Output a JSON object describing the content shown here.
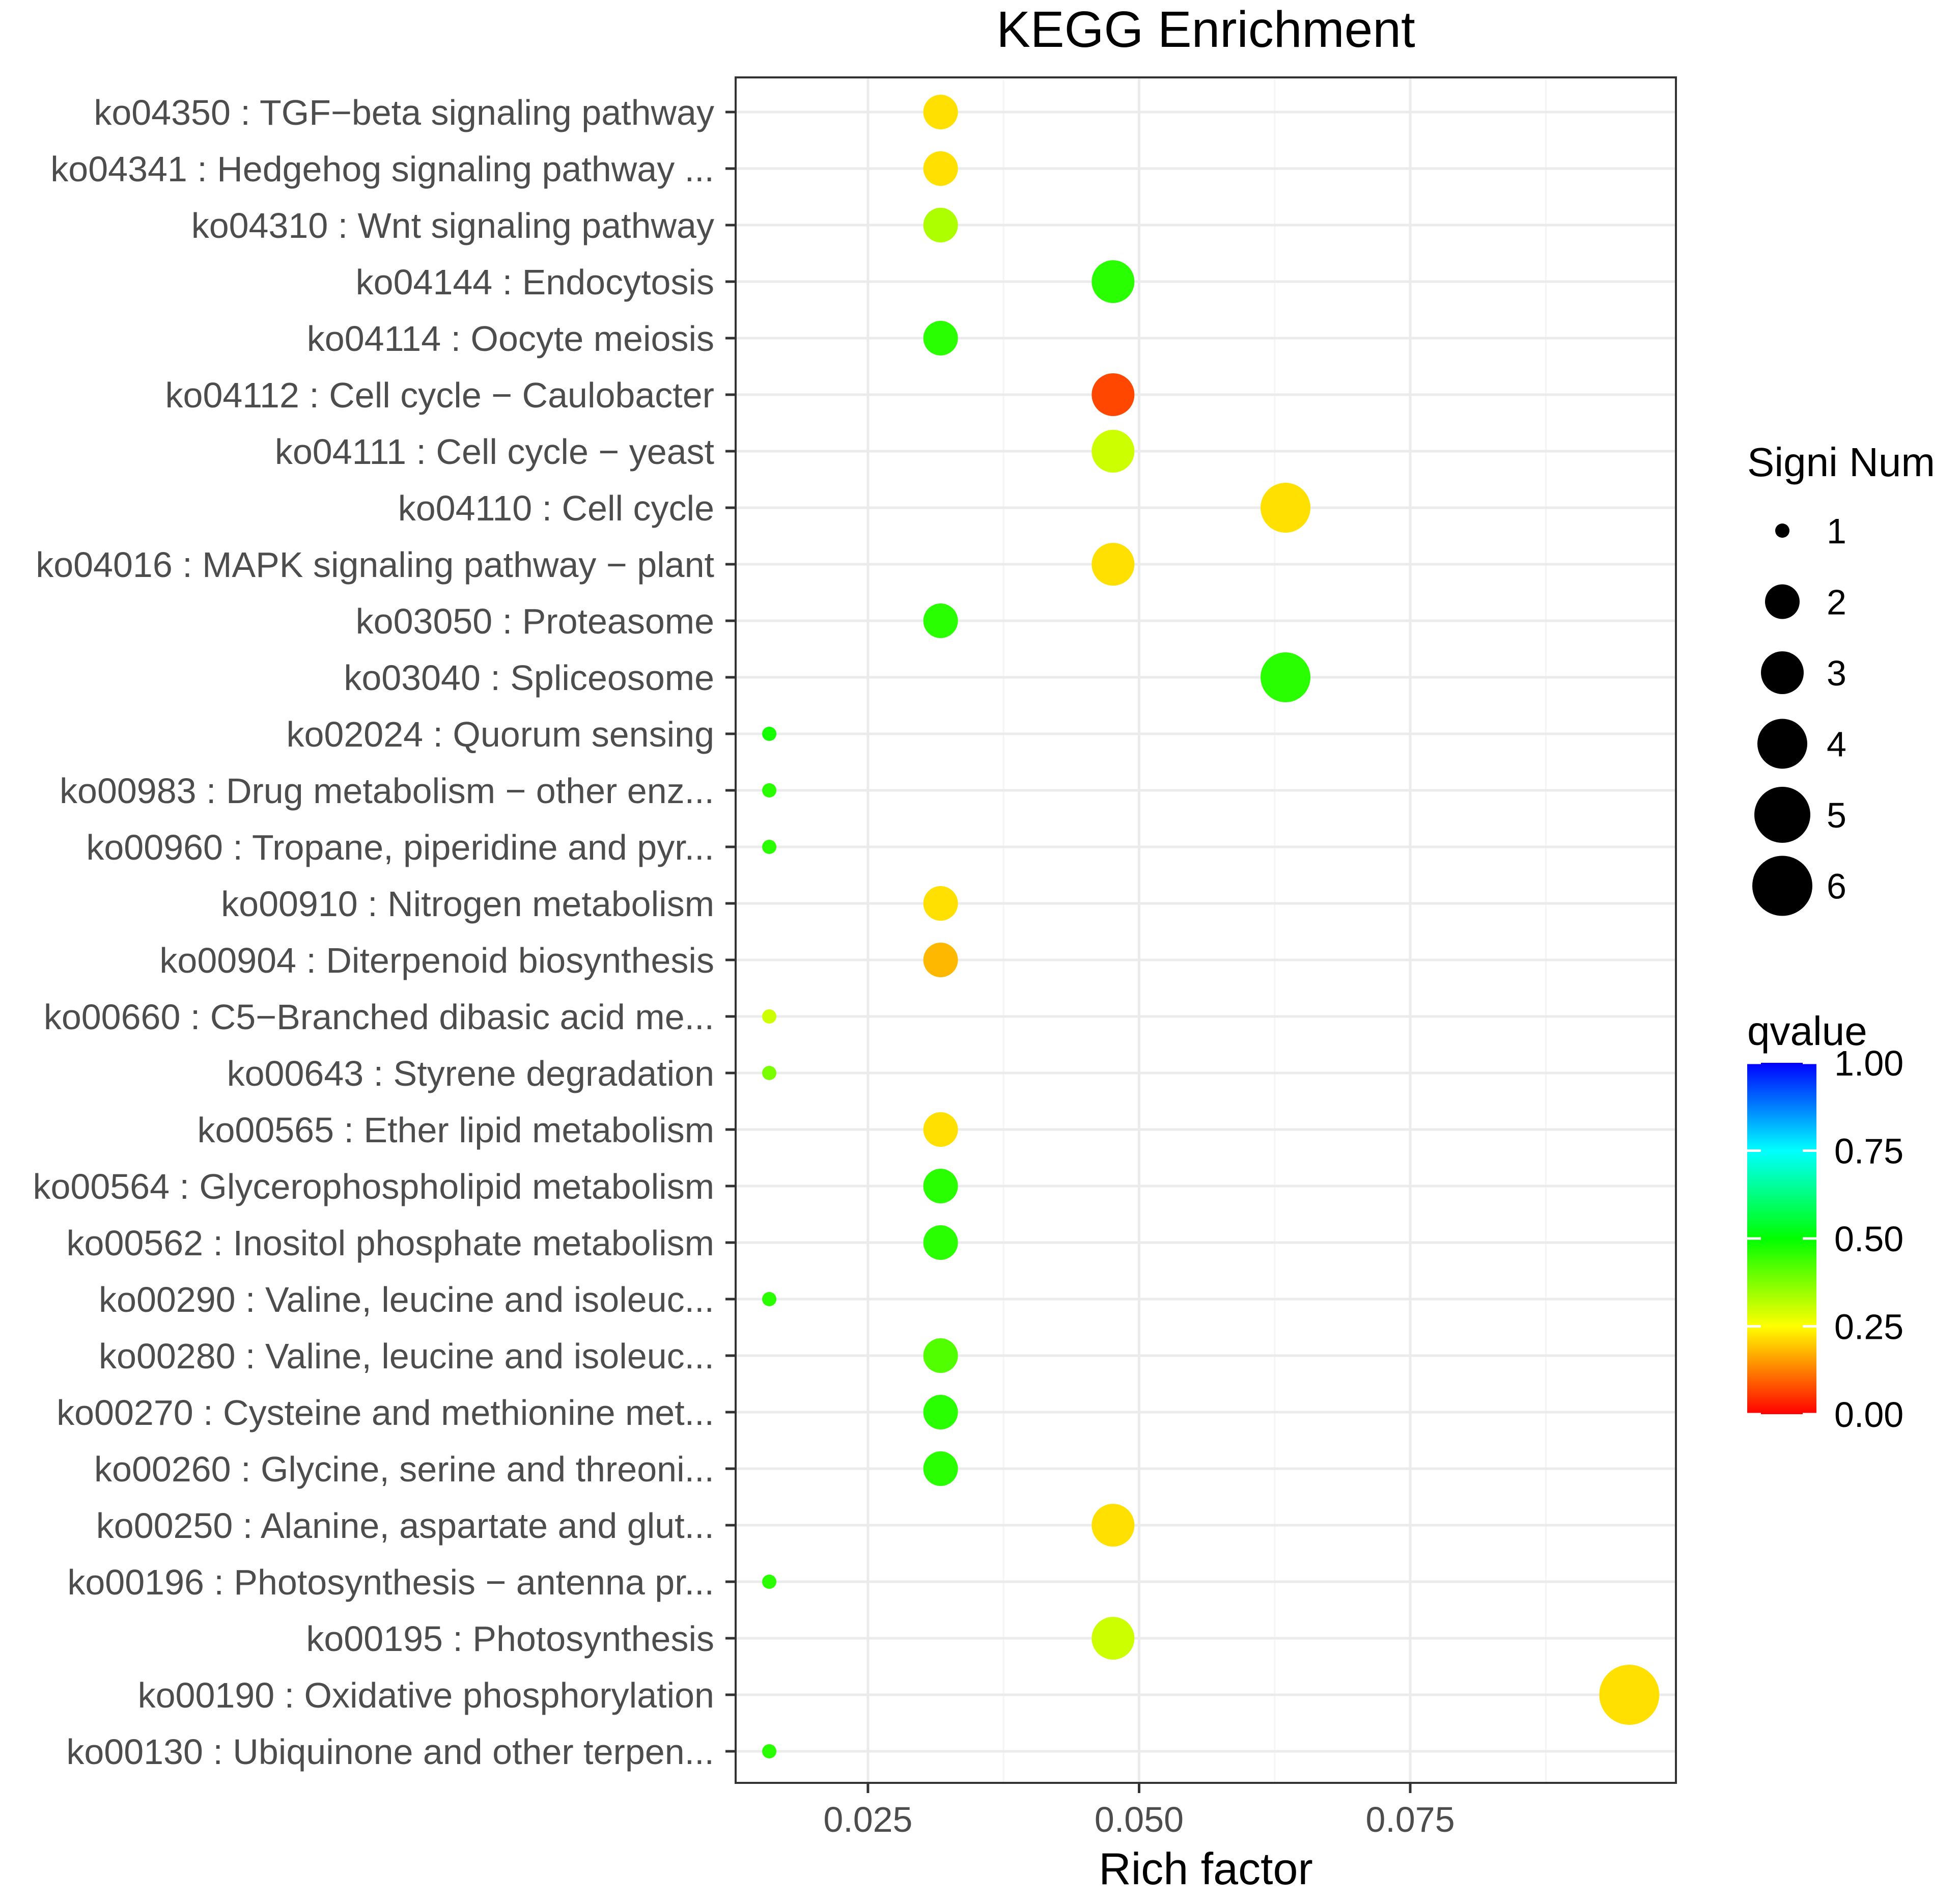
{
  "chart_data": {
    "type": "scatter",
    "title": "KEGG Enrichment",
    "xlabel": "Rich factor",
    "ylabel": "",
    "xlim": [
      0.0128,
      0.0995
    ],
    "x_ticks": [
      0.025,
      0.05,
      0.075
    ],
    "x_tick_labels": [
      "0.025",
      "0.050",
      "0.075"
    ],
    "grid": true,
    "points": [
      {
        "label": "ko04350 : TGF−beta signaling pathway",
        "x": 0.0317,
        "signi_num": 2,
        "qvalue": 0.22
      },
      {
        "label": "ko04341 : Hedgehog signaling pathway ...",
        "x": 0.0317,
        "signi_num": 2,
        "qvalue": 0.22
      },
      {
        "label": "ko04310 : Wnt signaling pathway",
        "x": 0.0317,
        "signi_num": 2,
        "qvalue": 0.33
      },
      {
        "label": "ko04144 : Endocytosis",
        "x": 0.0476,
        "signi_num": 3,
        "qvalue": 0.46
      },
      {
        "label": "ko04114 : Oocyte meiosis",
        "x": 0.0317,
        "signi_num": 2,
        "qvalue": 0.46
      },
      {
        "label": "ko04112 : Cell cycle − Caulobacter",
        "x": 0.0476,
        "signi_num": 3,
        "qvalue": 0.07
      },
      {
        "label": "ko04111 : Cell cycle − yeast",
        "x": 0.0476,
        "signi_num": 3,
        "qvalue": 0.3
      },
      {
        "label": "ko04110 : Cell cycle",
        "x": 0.0635,
        "signi_num": 4,
        "qvalue": 0.22
      },
      {
        "label": "ko04016 : MAPK signaling pathway − plant",
        "x": 0.0476,
        "signi_num": 3,
        "qvalue": 0.22
      },
      {
        "label": "ko03050 : Proteasome",
        "x": 0.0317,
        "signi_num": 2,
        "qvalue": 0.46
      },
      {
        "label": "ko03040 : Spliceosome",
        "x": 0.0635,
        "signi_num": 4,
        "qvalue": 0.46
      },
      {
        "label": "ko02024 : Quorum sensing",
        "x": 0.0159,
        "signi_num": 1,
        "qvalue": 0.48
      },
      {
        "label": "ko00983 : Drug metabolism − other enz...",
        "x": 0.0159,
        "signi_num": 1,
        "qvalue": 0.46
      },
      {
        "label": "ko00960 : Tropane, piperidine and pyr...",
        "x": 0.0159,
        "signi_num": 1,
        "qvalue": 0.46
      },
      {
        "label": "ko00910 : Nitrogen metabolism",
        "x": 0.0317,
        "signi_num": 2,
        "qvalue": 0.22
      },
      {
        "label": "ko00904 : Diterpenoid biosynthesis",
        "x": 0.0317,
        "signi_num": 2,
        "qvalue": 0.18
      },
      {
        "label": "ko00660 : C5−Branched dibasic acid me...",
        "x": 0.0159,
        "signi_num": 1,
        "qvalue": 0.3
      },
      {
        "label": "ko00643 : Styrene degradation",
        "x": 0.0159,
        "signi_num": 1,
        "qvalue": 0.38
      },
      {
        "label": "ko00565 : Ether lipid metabolism",
        "x": 0.0317,
        "signi_num": 2,
        "qvalue": 0.22
      },
      {
        "label": "ko00564 : Glycerophospholipid metabolism",
        "x": 0.0317,
        "signi_num": 2,
        "qvalue": 0.46
      },
      {
        "label": "ko00562 : Inositol phosphate metabolism",
        "x": 0.0317,
        "signi_num": 2,
        "qvalue": 0.46
      },
      {
        "label": "ko00290 : Valine, leucine and isoleuc...",
        "x": 0.0159,
        "signi_num": 1,
        "qvalue": 0.46
      },
      {
        "label": "ko00280 : Valine, leucine and isoleuc...",
        "x": 0.0317,
        "signi_num": 2,
        "qvalue": 0.42
      },
      {
        "label": "ko00270 : Cysteine and methionine met...",
        "x": 0.0317,
        "signi_num": 2,
        "qvalue": 0.46
      },
      {
        "label": "ko00260 : Glycine, serine and threoni...",
        "x": 0.0317,
        "signi_num": 2,
        "qvalue": 0.46
      },
      {
        "label": "ko00250 : Alanine, aspartate and glut...",
        "x": 0.0476,
        "signi_num": 3,
        "qvalue": 0.22
      },
      {
        "label": "ko00196 : Photosynthesis − antenna pr...",
        "x": 0.0159,
        "signi_num": 1,
        "qvalue": 0.46
      },
      {
        "label": "ko00195 : Photosynthesis",
        "x": 0.0476,
        "signi_num": 3,
        "qvalue": 0.3
      },
      {
        "label": "ko00190 : Oxidative phosphorylation",
        "x": 0.0952,
        "signi_num": 6,
        "qvalue": 0.22
      },
      {
        "label": "ko00130 : Ubiquinone and other terpen...",
        "x": 0.0159,
        "signi_num": 1,
        "qvalue": 0.46
      }
    ],
    "size_legend": {
      "title": "Signi Num",
      "values": [
        1,
        2,
        3,
        4,
        5,
        6
      ],
      "labels": [
        "1",
        "2",
        "3",
        "4",
        "5",
        "6"
      ]
    },
    "color_legend": {
      "title": "qvalue",
      "range": [
        0,
        1
      ],
      "ticks": [
        1.0,
        0.75,
        0.5,
        0.25,
        0.0
      ],
      "tick_labels": [
        "1.00",
        "0.75",
        "0.50",
        "0.25",
        "0.00"
      ],
      "gradient": [
        "#ff0000",
        "#ffff00",
        "#00ff00",
        "#00ffff",
        "#0000ff"
      ]
    },
    "colors": {
      "panel_border": "#333333",
      "grid_major": "#ebebeb",
      "grid_minor": "#f5f5f5",
      "axis_text": "#4d4d4d",
      "title_text": "#000000"
    }
  }
}
